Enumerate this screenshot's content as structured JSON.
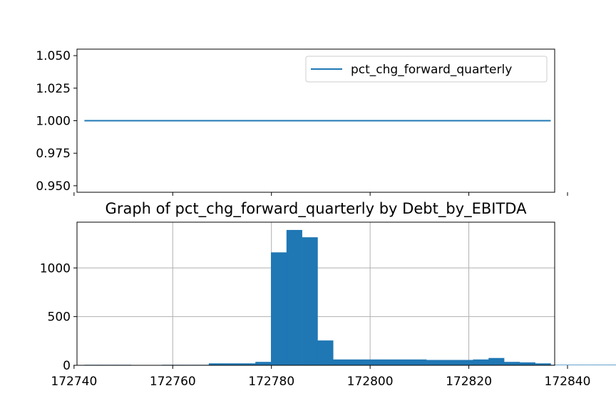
{
  "chart_data": [
    {
      "type": "line",
      "title": "",
      "xlabel": "",
      "ylabel": "",
      "xlim": [
        172740.6,
        172837.4
      ],
      "ylim": [
        0.945,
        1.055
      ],
      "yticks": [
        "0.950",
        "0.975",
        "1.000",
        "1.025",
        "1.050"
      ],
      "ytick_values": [
        0.95,
        0.975,
        1.0,
        1.025,
        1.05
      ],
      "xtick_values": [
        172740,
        172760,
        172780,
        172800,
        172820,
        172840
      ],
      "x_ticklabels_visible": false,
      "grid": false,
      "legend_position": "upper right",
      "series": [
        {
          "name": "pct_chg_forward_quarterly",
          "color": "#1f77b4",
          "x": [
            172742.1,
            172836.6
          ],
          "values": [
            1.0,
            1.0
          ]
        }
      ]
    },
    {
      "type": "bar",
      "subtype": "histogram",
      "title": "Graph of pct_chg_forward_quarterly by Debt_by_EBITDA",
      "xlabel": "",
      "ylabel": "",
      "xlim": [
        172740.6,
        172837.4
      ],
      "ylim": [
        0,
        1470
      ],
      "xticks": [
        "172740",
        "172760",
        "172780",
        "172800",
        "172820",
        "172840"
      ],
      "xtick_values": [
        172740,
        172760,
        172780,
        172800,
        172820,
        172840
      ],
      "yticks": [
        "0",
        "500",
        "1000"
      ],
      "ytick_values": [
        0,
        500,
        1000
      ],
      "grid": true,
      "color": "#1f77b4",
      "bin_start": 172742.1,
      "bin_width": 3.15,
      "values": [
        5,
        5,
        5,
        0,
        0,
        5,
        5,
        5,
        20,
        20,
        20,
        35,
        1160,
        1390,
        1315,
        255,
        60,
        60,
        60,
        60,
        60,
        60,
        55,
        55,
        55,
        60,
        75,
        35,
        30,
        20,
        5,
        5,
        5,
        5,
        5,
        5
      ]
    }
  ]
}
